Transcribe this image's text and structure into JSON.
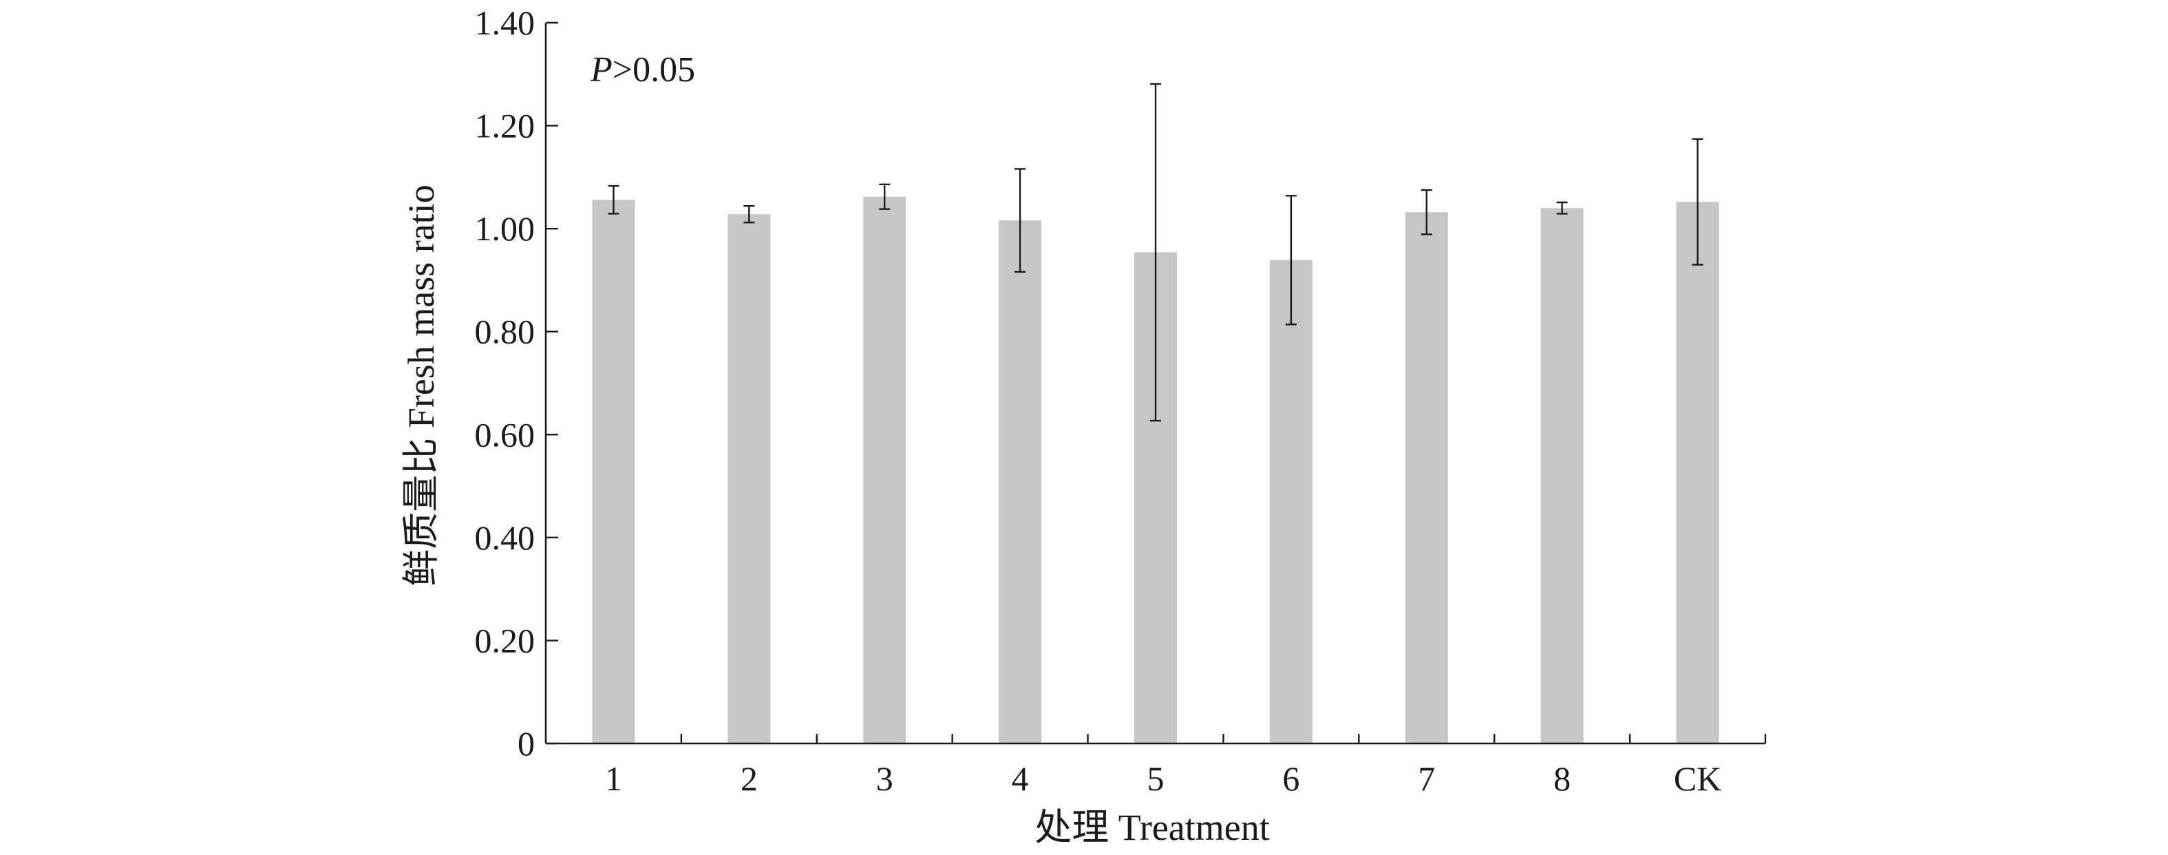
{
  "chart_data": {
    "type": "bar",
    "categories": [
      "1",
      "2",
      "3",
      "4",
      "5",
      "6",
      "7",
      "8",
      "CK"
    ],
    "values": [
      1.056,
      1.028,
      1.062,
      1.016,
      0.954,
      0.939,
      1.032,
      1.04,
      1.052
    ],
    "error": [
      0.027,
      0.016,
      0.024,
      0.1,
      0.327,
      0.125,
      0.043,
      0.011,
      0.122
    ],
    "xlabel": "处理 Treatment",
    "ylabel": "鲜质量比 Fresh mass ratio",
    "ylim": [
      0,
      1.4
    ],
    "yticks": [
      0,
      0.2,
      0.4,
      0.6,
      0.8,
      1.0,
      1.2,
      1.4
    ],
    "ytick_labels": [
      "0",
      "0.20",
      "0.40",
      "0.60",
      "0.80",
      "1.00",
      "1.20",
      "1.40"
    ],
    "annotation": {
      "italic": "P",
      "rest": ">0.05"
    },
    "bar_color": "#c6c6c6",
    "axis_color": "#1a1a1a",
    "grid": false,
    "legend": "none"
  }
}
